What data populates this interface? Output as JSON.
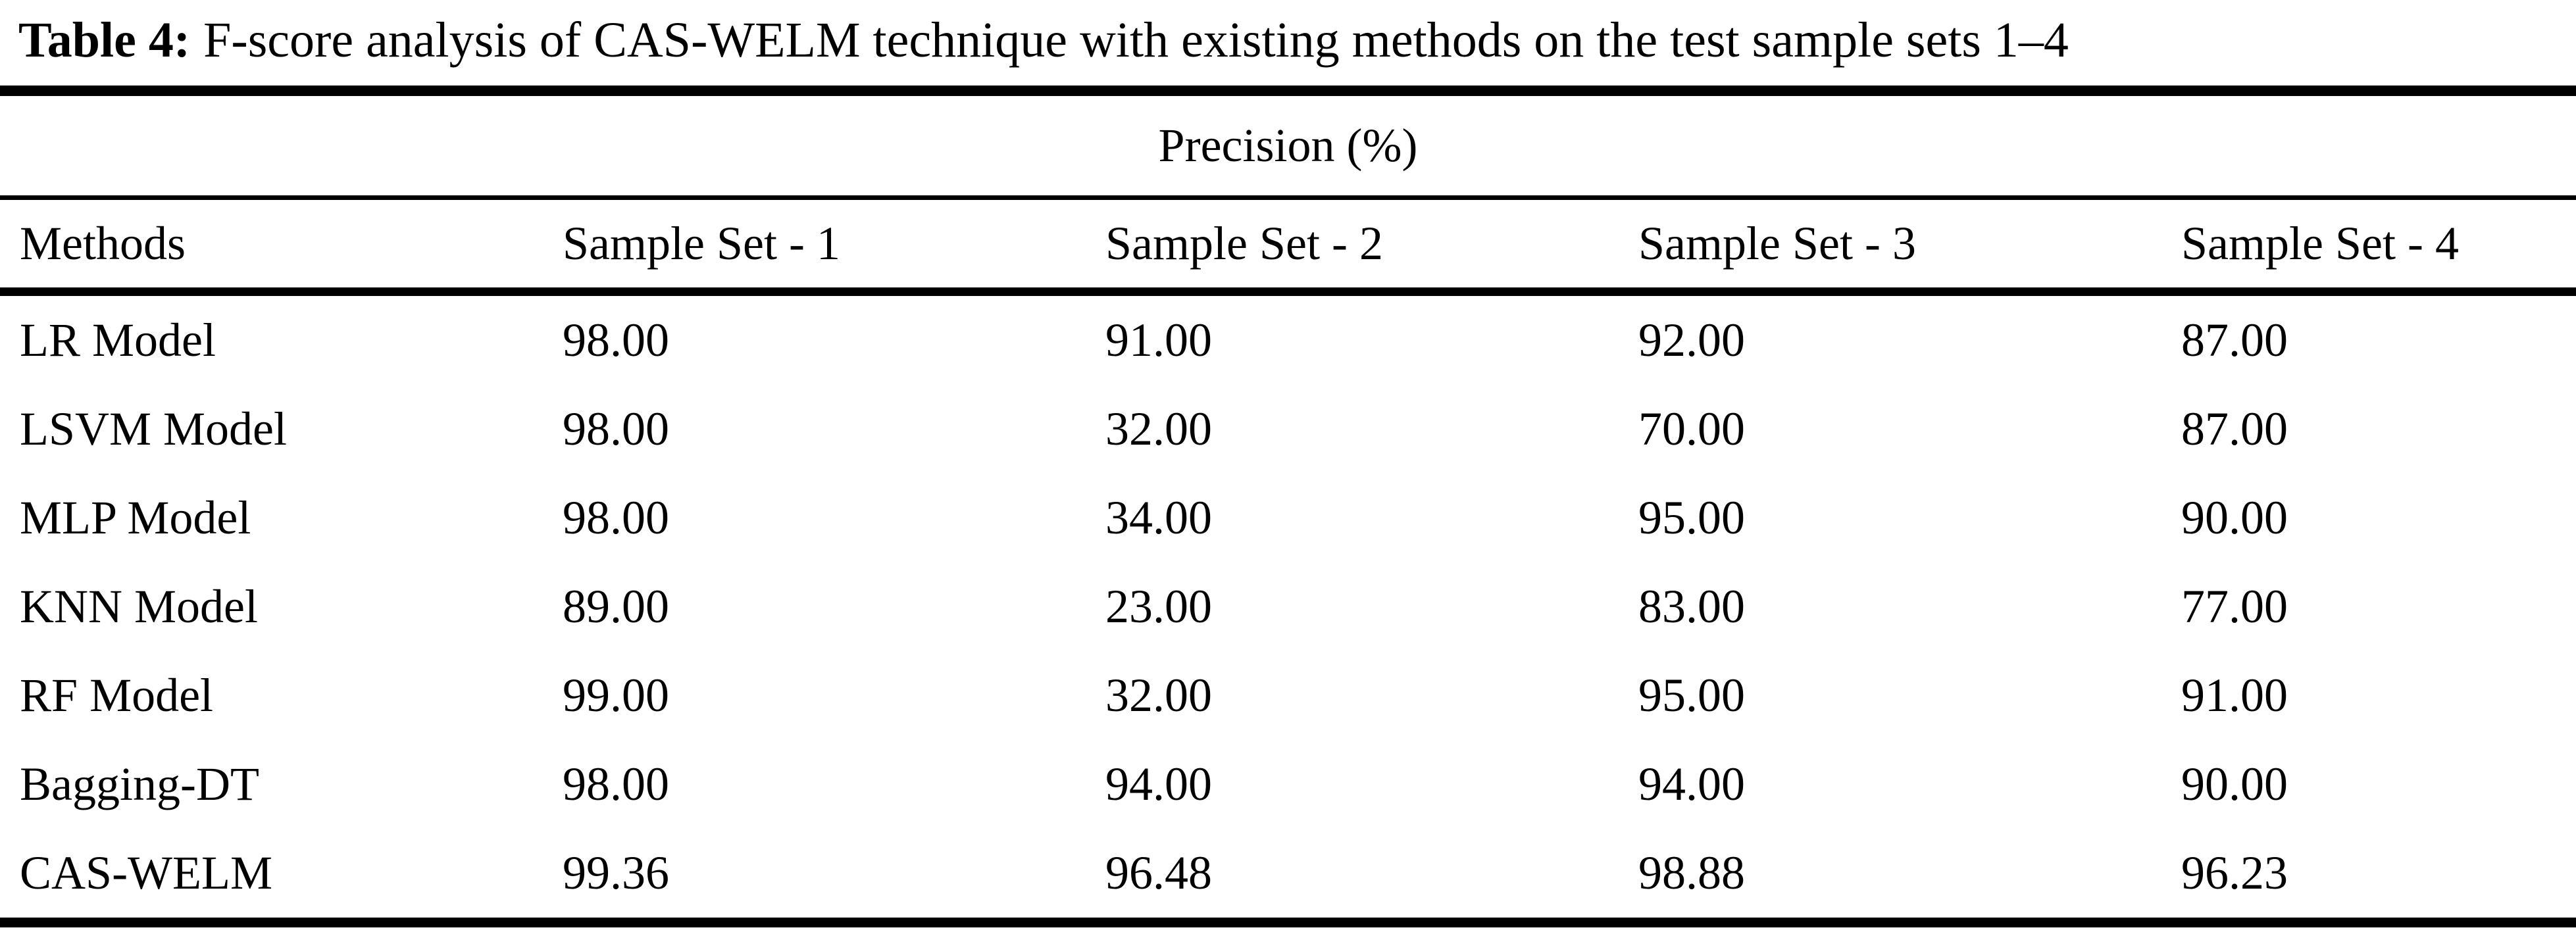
{
  "table": {
    "caption_label": "Table 4:",
    "caption_text": "F-score analysis of CAS-WELM technique with existing methods on the test sample sets 1–4",
    "group_header": "Precision (%)",
    "columns": [
      "Methods",
      "Sample Set - 1",
      "Sample Set - 2",
      "Sample Set - 3",
      "Sample Set - 4"
    ],
    "rows": [
      {
        "method": "LR Model",
        "values": [
          "98.00",
          "91.00",
          "92.00",
          "87.00"
        ]
      },
      {
        "method": "LSVM Model",
        "values": [
          "98.00",
          "32.00",
          "70.00",
          "87.00"
        ]
      },
      {
        "method": "MLP Model",
        "values": [
          "98.00",
          "34.00",
          "95.00",
          "90.00"
        ]
      },
      {
        "method": "KNN Model",
        "values": [
          "89.00",
          "23.00",
          "83.00",
          "77.00"
        ]
      },
      {
        "method": "RF Model",
        "values": [
          "99.00",
          "32.00",
          "95.00",
          "91.00"
        ]
      },
      {
        "method": "Bagging-DT",
        "values": [
          "98.00",
          "94.00",
          "94.00",
          "90.00"
        ]
      },
      {
        "method": "CAS-WELM",
        "values": [
          "99.36",
          "96.48",
          "98.88",
          "96.23"
        ]
      }
    ],
    "colors": {
      "text": "#000000",
      "background": "#ffffff",
      "rule": "#000000"
    }
  },
  "chart_data": {
    "type": "table",
    "title": "Table 4: F-score analysis of CAS-WELM technique with existing methods on the test sample sets 1–4",
    "group_header": "Precision (%)",
    "categories": [
      "Sample Set - 1",
      "Sample Set - 2",
      "Sample Set - 3",
      "Sample Set - 4"
    ],
    "series": [
      {
        "name": "LR Model",
        "values": [
          98.0,
          91.0,
          92.0,
          87.0
        ]
      },
      {
        "name": "LSVM Model",
        "values": [
          98.0,
          32.0,
          70.0,
          87.0
        ]
      },
      {
        "name": "MLP Model",
        "values": [
          98.0,
          34.0,
          95.0,
          90.0
        ]
      },
      {
        "name": "KNN Model",
        "values": [
          89.0,
          23.0,
          83.0,
          77.0
        ]
      },
      {
        "name": "RF Model",
        "values": [
          99.0,
          32.0,
          95.0,
          91.0
        ]
      },
      {
        "name": "Bagging-DT",
        "values": [
          98.0,
          94.0,
          94.0,
          90.0
        ]
      },
      {
        "name": "CAS-WELM",
        "values": [
          99.36,
          96.48,
          98.88,
          96.23
        ]
      }
    ]
  }
}
